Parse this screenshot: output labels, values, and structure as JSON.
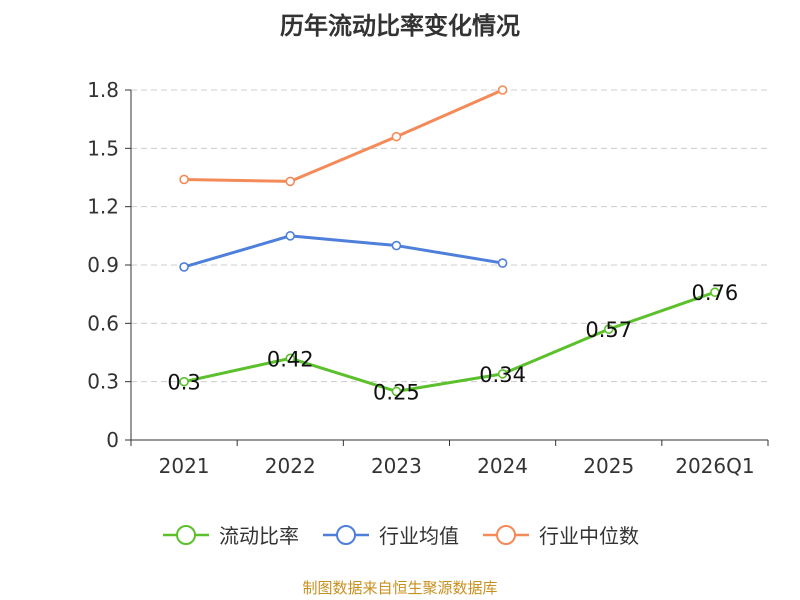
{
  "chart_data": {
    "type": "line",
    "title": "历年流动比率变化情况",
    "categories": [
      "2021",
      "2022",
      "2023",
      "2024",
      "2025",
      "2026Q1"
    ],
    "yticks": [
      "0",
      "0.3",
      "0.6",
      "0.9",
      "1.2",
      "1.5",
      "1.8"
    ],
    "ylim": [
      0,
      1.8
    ],
    "grid": true,
    "legend_position": "bottom",
    "series": [
      {
        "name": "流动比率",
        "color": "#5cc02c",
        "values": [
          0.3,
          0.42,
          0.25,
          0.34,
          0.57,
          0.76
        ],
        "labels": [
          "0.3",
          "0.42",
          "0.25",
          "0.34",
          "0.57",
          "0.76"
        ]
      },
      {
        "name": "行业均值",
        "color": "#4e7fdb",
        "values": [
          0.89,
          1.05,
          1.0,
          0.91,
          null,
          null
        ]
      },
      {
        "name": "行业中位数",
        "color": "#f48a58",
        "values": [
          1.34,
          1.33,
          1.56,
          1.8,
          null,
          null
        ]
      }
    ]
  },
  "source_note": "制图数据来自恒生聚源数据库"
}
